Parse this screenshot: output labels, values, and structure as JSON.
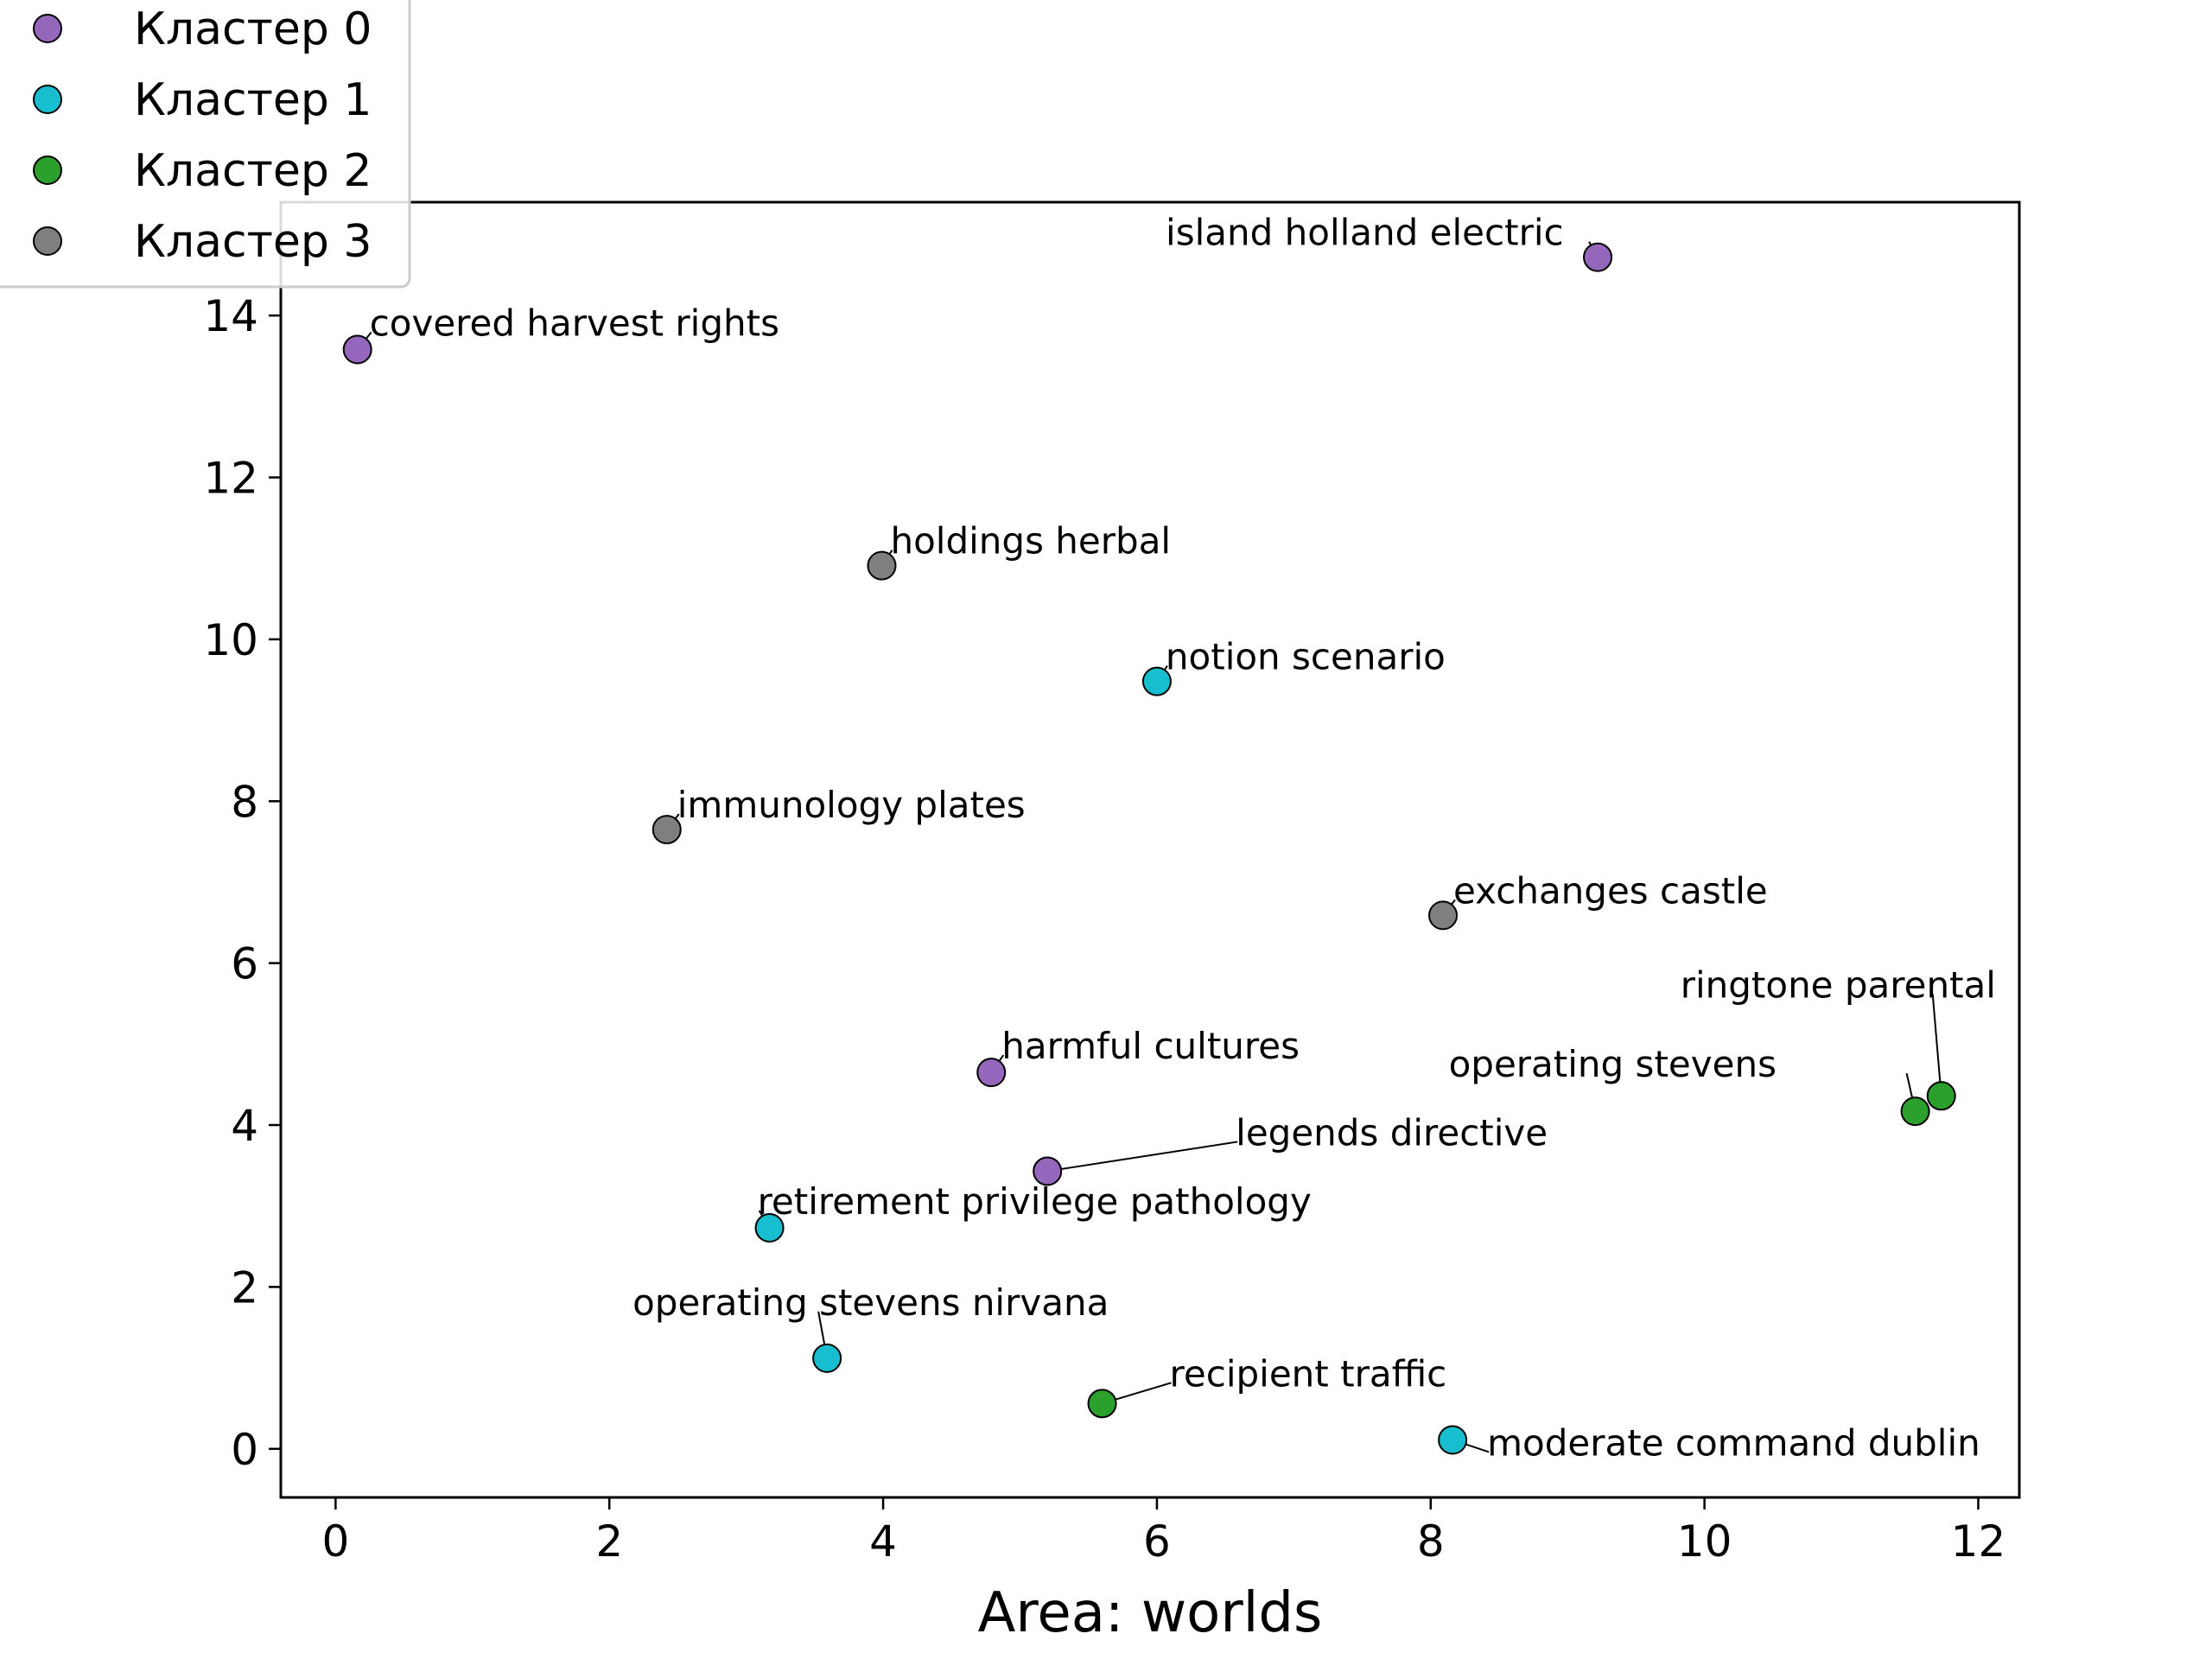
{
  "chart_data": {
    "type": "scatter",
    "xlabel": "Area: worlds",
    "ylabel": "",
    "xlim": [
      -0.4,
      12.3
    ],
    "ylim": [
      -0.6,
      15.4
    ],
    "xticks": [
      0,
      2,
      4,
      6,
      8,
      10,
      12
    ],
    "yticks": [
      0,
      2,
      4,
      6,
      8,
      10,
      12,
      14
    ],
    "grid": false,
    "legend": {
      "placement": "top-left"
    },
    "series": [
      {
        "name": "Кластер 0",
        "color": "#9467bd",
        "points": [
          {
            "x": 9.22,
            "y": 14.72,
            "label": "island holland electric"
          },
          {
            "x": 0.16,
            "y": 13.58,
            "label": "covered harvest rights"
          },
          {
            "x": 4.79,
            "y": 4.65,
            "label": "harmful cultures"
          },
          {
            "x": 5.2,
            "y": 3.43,
            "label": "legends directive"
          }
        ]
      },
      {
        "name": "Кластер 1",
        "color": "#17becf",
        "points": [
          {
            "x": 6.0,
            "y": 9.48,
            "label": "notion scenario"
          },
          {
            "x": 3.17,
            "y": 2.73,
            "label": "retirement privilege pathology"
          },
          {
            "x": 3.59,
            "y": 1.12,
            "label": "operating stevens nirvana"
          },
          {
            "x": 8.16,
            "y": 0.11,
            "label": "moderate command dublin"
          }
        ]
      },
      {
        "name": "Кластер 2",
        "color": "#2ca02c",
        "points": [
          {
            "x": 11.73,
            "y": 4.36,
            "label": "ringtone parental"
          },
          {
            "x": 11.54,
            "y": 4.17,
            "label": "operating stevens"
          },
          {
            "x": 5.6,
            "y": 0.56,
            "label": "recipient traffic"
          }
        ]
      },
      {
        "name": "Кластер 3",
        "color": "#7f7f7f",
        "points": [
          {
            "x": 3.99,
            "y": 10.91,
            "label": "holdings herbal"
          },
          {
            "x": 2.42,
            "y": 7.65,
            "label": "immunology plates"
          },
          {
            "x": 8.09,
            "y": 6.59,
            "label": "exchanges castle"
          }
        ]
      }
    ]
  }
}
